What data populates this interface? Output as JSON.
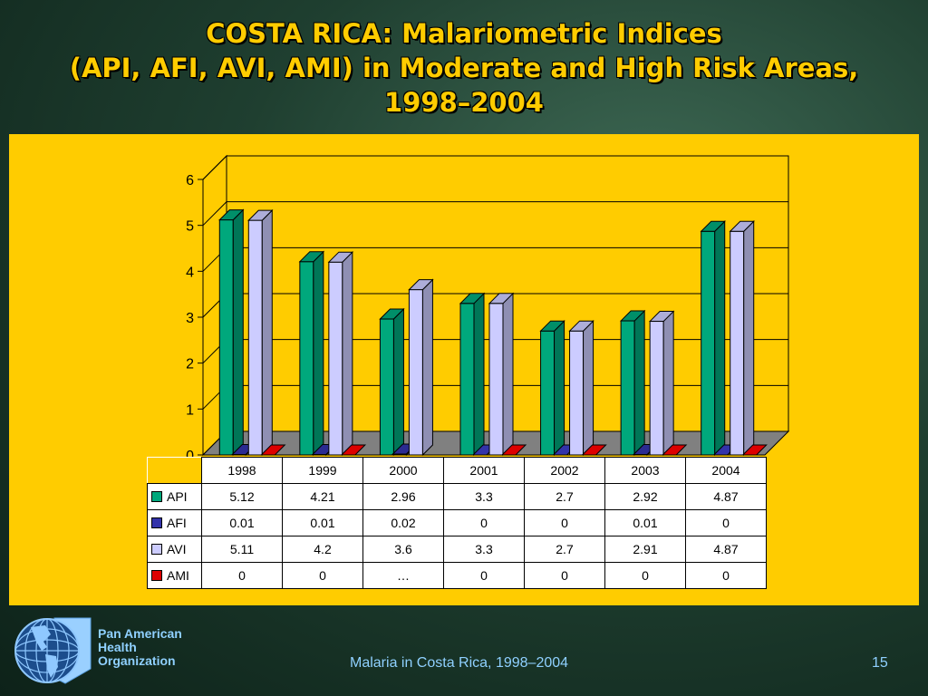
{
  "slide": {
    "title_line1": "COSTA RICA: Malariometric Indices",
    "title_line2": "(API, AFI, AVI, AMI) in Moderate and High Risk Areas,",
    "title_line3": "1998–2004",
    "footer_text": "Malaria in Costa Rica, 1998–2004",
    "slide_number": "15",
    "org_name_line1": "Pan American",
    "org_name_line2": "Health",
    "org_name_line3": "Organization",
    "background_color": "#1f3f30",
    "panel_color": "#ffcc00",
    "title_color": "#ffcc00",
    "footer_color": "#8fd0ff"
  },
  "chart_data": {
    "type": "bar",
    "style": "3d-clustered-column",
    "categories": [
      "1998",
      "1999",
      "2000",
      "2001",
      "2002",
      "2003",
      "2004"
    ],
    "ylim": [
      0,
      6
    ],
    "yticks": [
      "0",
      "1",
      "2",
      "3",
      "4",
      "5",
      "6"
    ],
    "grid": true,
    "legend": "data-table",
    "series": [
      {
        "name": "API",
        "color": "#00a87c",
        "values": [
          5.12,
          4.21,
          2.96,
          3.3,
          2.7,
          2.92,
          4.87
        ],
        "labels": [
          "5.12",
          "4.21",
          "2.96",
          "3.3",
          "2.7",
          "2.92",
          "4.87"
        ]
      },
      {
        "name": "AFI",
        "color": "#3333aa",
        "values": [
          0.01,
          0.01,
          0.02,
          0,
          0,
          0.01,
          0
        ],
        "labels": [
          "0.01",
          "0.01",
          "0.02",
          "0",
          "0",
          "0.01",
          "0"
        ]
      },
      {
        "name": "AVI",
        "color": "#ccccff",
        "values": [
          5.11,
          4.2,
          3.6,
          3.3,
          2.7,
          2.91,
          4.87
        ],
        "labels": [
          "5.11",
          "4.2",
          "3.6",
          "3.3",
          "2.7",
          "2.91",
          "4.87"
        ]
      },
      {
        "name": "AMI",
        "color": "#dd0000",
        "values": [
          0,
          0,
          null,
          0,
          0,
          0,
          0
        ],
        "labels": [
          "0",
          "0",
          "…",
          "0",
          "0",
          "0",
          "0"
        ]
      }
    ]
  }
}
